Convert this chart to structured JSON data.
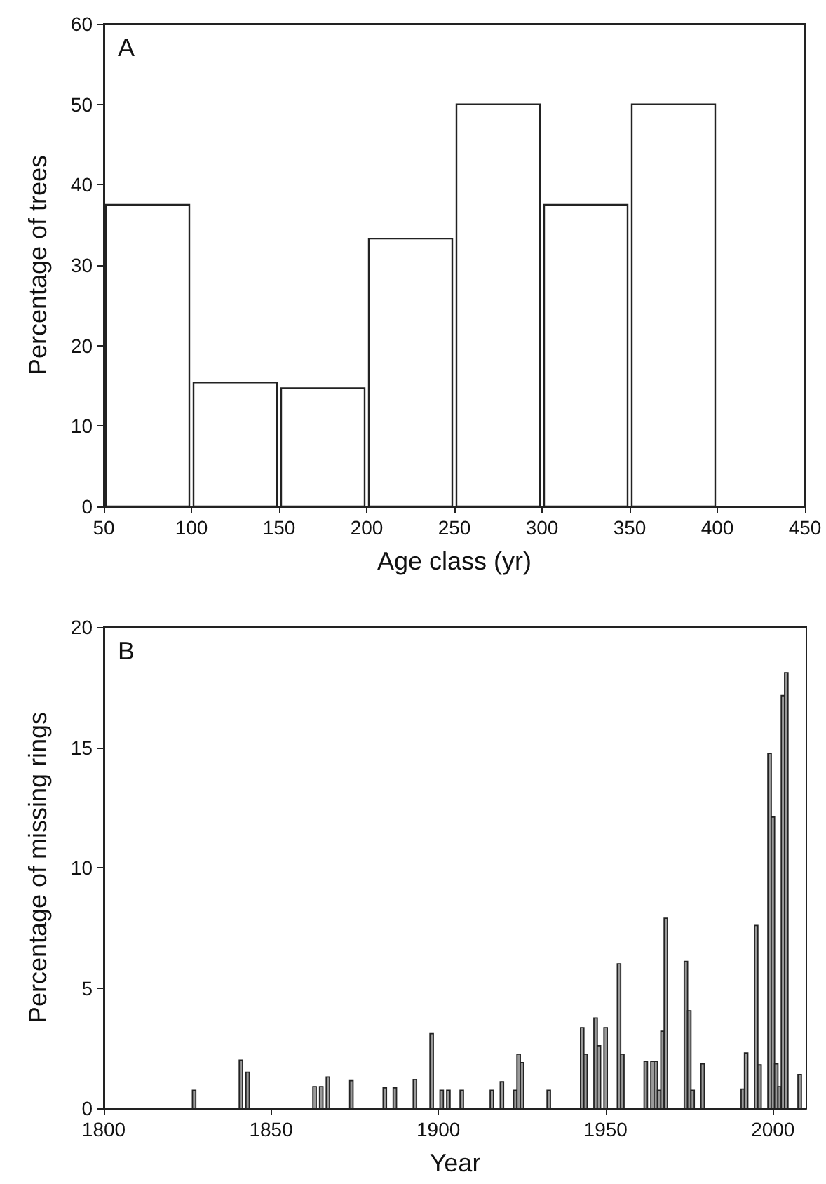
{
  "chart_data": [
    {
      "type": "histogram",
      "annotations": [
        "A"
      ],
      "xlabel": "Age class (yr)",
      "ylabel": "Percentage of trees",
      "bins": [
        50,
        100,
        150,
        200,
        250,
        300,
        350,
        400
      ],
      "values": [
        37.5,
        15.4,
        14.7,
        33.3,
        50,
        37.5,
        50
      ],
      "color": "#ffffff",
      "xlim": [
        50,
        450
      ],
      "xticks": [
        50,
        100,
        150,
        200,
        250,
        300,
        350,
        400,
        450
      ],
      "ylim": [
        0,
        60
      ],
      "yticks": [
        0,
        10,
        20,
        30,
        40,
        50,
        60
      ]
    },
    {
      "type": "bar",
      "annotations": [
        "B"
      ],
      "xlabel": "Year",
      "ylabel": "Percentage of missing rings",
      "x": [
        1827,
        1841,
        1843,
        1863,
        1865,
        1867,
        1874,
        1884,
        1887,
        1893,
        1898,
        1901,
        1903,
        1907,
        1916,
        1919,
        1923,
        1924,
        1925,
        1933,
        1943,
        1944,
        1947,
        1948,
        1950,
        1954,
        1955,
        1962,
        1964,
        1965,
        1966,
        1967,
        1968,
        1974,
        1975,
        1976,
        1979,
        1991,
        1992,
        1995,
        1996,
        1999,
        2000,
        2001,
        2002,
        2003,
        2004,
        2008
      ],
      "values": [
        0.75,
        2.0,
        1.5,
        0.9,
        0.9,
        1.3,
        1.15,
        0.85,
        0.85,
        1.2,
        3.1,
        0.75,
        0.75,
        0.75,
        0.75,
        1.1,
        0.75,
        2.25,
        1.9,
        0.75,
        3.35,
        2.25,
        3.75,
        2.6,
        3.35,
        6.0,
        2.25,
        1.95,
        1.95,
        1.95,
        0.75,
        3.2,
        7.9,
        6.1,
        4.05,
        0.75,
        1.85,
        0.8,
        2.3,
        7.6,
        1.8,
        14.75,
        12.1,
        1.85,
        0.9,
        17.15,
        18.1,
        1.4
      ],
      "color": "#9a9a9a",
      "xlim": [
        1800,
        2010
      ],
      "xticks": [
        1800,
        1850,
        1900,
        1950,
        2000
      ],
      "ylim": [
        0,
        20
      ],
      "yticks": [
        0,
        5,
        10,
        15,
        20
      ]
    }
  ]
}
